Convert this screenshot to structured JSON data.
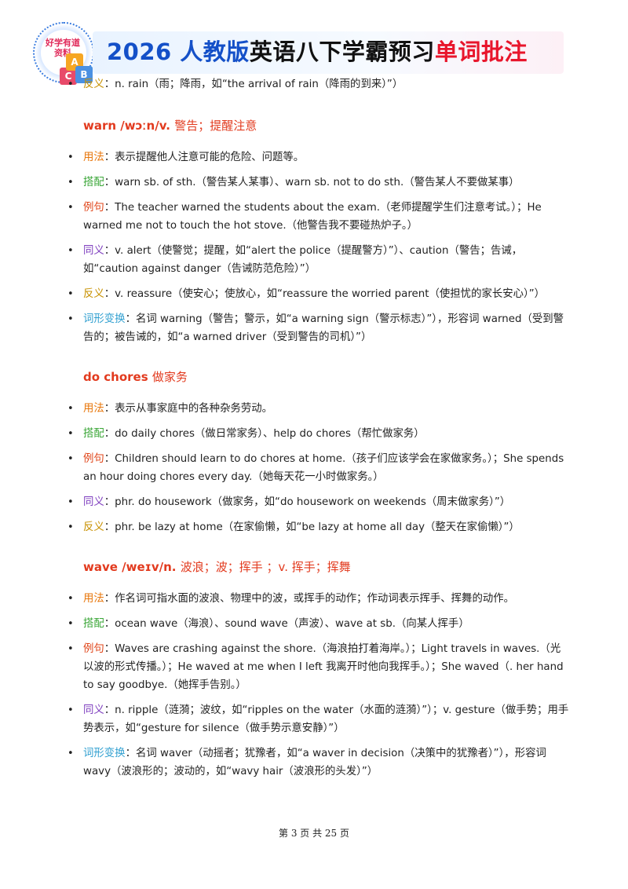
{
  "banner": {
    "logo_text": "好学有道资料",
    "blocks": [
      "A",
      "B",
      "C"
    ],
    "title_part1": "2026 人教版",
    "title_part2": "英语八下学霸预习",
    "title_part3": "单词批注"
  },
  "entries": [
    {
      "id": "rain-tail",
      "items": [
        {
          "label": "反义",
          "sep": "：",
          "text": "n. rain（雨；降雨，如“the arrival of rain（降雨的到来）”）"
        }
      ]
    },
    {
      "id": "warn",
      "head": "warn /wɔːn/v.",
      "meaning": "警告；提醒注意",
      "items": [
        {
          "label": "用法",
          "sep": "：",
          "text": "表示提醒他人注意可能的危险、问题等。"
        },
        {
          "label": "搭配",
          "sep": "：",
          "text": "warn sb. of sth.（警告某人某事）、warn sb. not to do sth.（警告某人不要做某事）"
        },
        {
          "label": "例句",
          "sep": "：",
          "text": "The teacher warned the students about the exam.（老师提醒学生们注意考试。）；He warned me not to touch the hot stove.（他警告我不要碰热炉子。）"
        },
        {
          "label": "同义",
          "sep": "：",
          "text": "v. alert（使警觉；提醒，如“alert the police（提醒警方）”）、caution（警告；告诫，如“caution against danger（告诫防范危险）”）"
        },
        {
          "label": "反义",
          "sep": "：",
          "text": "v. reassure（使安心；使放心，如“reassure the worried parent（使担忧的家长安心）”）"
        },
        {
          "label": "词形变换",
          "sep": "：",
          "text": "名词 warning（警告；警示，如“a warning sign（警示标志）”），形容词 warned（受到警告的；被告诫的，如“a warned driver（受到警告的司机）”）"
        }
      ]
    },
    {
      "id": "do-chores",
      "head": "do chores",
      "meaning": "做家务",
      "items": [
        {
          "label": "用法",
          "sep": "：",
          "text": "表示从事家庭中的各种杂务劳动。"
        },
        {
          "label": "搭配",
          "sep": "：",
          "text": "do daily chores（做日常家务）、help do chores（帮忙做家务）"
        },
        {
          "label": "例句",
          "sep": "：",
          "text": "Children should learn to do chores at home.（孩子们应该学会在家做家务。）；She spends an hour doing chores every day.（她每天花一小时做家务。）"
        },
        {
          "label": "同义",
          "sep": "：",
          "text": "phr. do housework（做家务，如“do housework on weekends（周末做家务）”）"
        },
        {
          "label": "反义",
          "sep": "：",
          "text": "phr. be lazy at home（在家偷懒，如“be lazy at home all day（整天在家偷懒）”）"
        }
      ]
    },
    {
      "id": "wave",
      "head": "wave /weɪv/n.",
      "meaning": "波浪；波；挥手 ；v. 挥手；挥舞",
      "items": [
        {
          "label": "用法",
          "sep": "：",
          "text": "作名词可指水面的波浪、物理中的波，或挥手的动作；作动词表示挥手、挥舞的动作。"
        },
        {
          "label": "搭配",
          "sep": "：",
          "text": "ocean wave（海浪）、sound wave（声波）、wave at sb.（向某人挥手）"
        },
        {
          "label": "例句",
          "sep": "：",
          "text": "Waves are crashing against the shore.（海浪拍打着海岸。）；Light travels in waves.（光以波的形式传播。）；He waved at me when I left 我离开时他向我挥手。）；She waved（. her hand to say goodbye.（她挥手告别。）"
        },
        {
          "label": "同义",
          "sep": "：",
          "text": "n. ripple（涟漪；波纹，如“ripples on the water（水面的涟漪）”）；v. gesture（做手势；用手势表示，如“gesture for silence（做手势示意安静）”）"
        },
        {
          "label": "词形变换",
          "sep": "：",
          "text": "名词 waver（动摇者；犹豫者，如“a waver in decision（决策中的犹豫者）”），形容词 wavy（波浪形的；波动的，如“wavy hair（波浪形的头发）”）"
        }
      ]
    }
  ],
  "footer": "第 3 页 共 25 页"
}
